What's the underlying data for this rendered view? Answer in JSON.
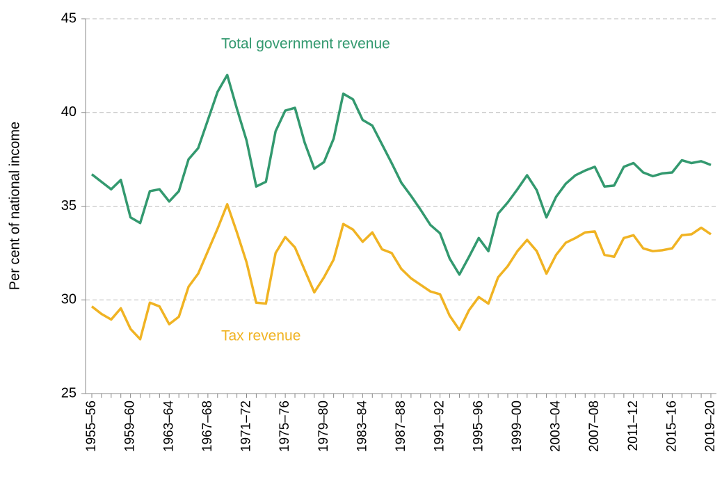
{
  "chart_data": {
    "type": "line",
    "y_label": "Per cent of national income",
    "categories": [
      "1955–56",
      null,
      null,
      null,
      "1959–60",
      null,
      null,
      null,
      "1963–64",
      null,
      null,
      null,
      "1967–68",
      null,
      null,
      null,
      "1971–72",
      null,
      null,
      null,
      "1975–76",
      null,
      null,
      null,
      "1979–80",
      null,
      null,
      null,
      "1983–84",
      null,
      null,
      null,
      "1987–88",
      null,
      null,
      null,
      "1991–92",
      null,
      null,
      null,
      "1995–96",
      null,
      null,
      null,
      "1999–00",
      null,
      null,
      null,
      "2003–04",
      null,
      null,
      null,
      "2007–08",
      null,
      null,
      null,
      "2011–12",
      null,
      null,
      null,
      "2015–16",
      null,
      null,
      null,
      "2019–20"
    ],
    "series": [
      {
        "name": "Total government revenue",
        "color": "#33996f",
        "values": [
          36.7,
          36.3,
          35.9,
          36.4,
          34.4,
          34.1,
          35.8,
          35.9,
          35.25,
          35.8,
          37.5,
          38.1,
          39.6,
          41.1,
          42.0,
          40.2,
          38.5,
          36.05,
          36.3,
          39.0,
          40.1,
          40.25,
          38.4,
          37.0,
          37.35,
          38.6,
          41.0,
          40.7,
          39.6,
          39.3,
          38.3,
          37.3,
          36.25,
          35.55,
          34.8,
          34.0,
          33.55,
          32.2,
          31.35,
          32.3,
          33.3,
          32.6,
          34.6,
          35.2,
          35.9,
          36.65,
          35.85,
          34.4,
          35.5,
          36.2,
          36.65,
          36.9,
          37.1,
          36.05,
          36.1,
          37.1,
          37.3,
          36.8,
          36.6,
          36.75,
          36.8,
          37.45,
          37.3,
          37.4,
          37.2
        ]
      },
      {
        "name": "Tax revenue",
        "color": "#f0b323",
        "values": [
          29.65,
          29.25,
          28.95,
          29.55,
          28.45,
          27.9,
          29.85,
          29.65,
          28.7,
          29.1,
          30.7,
          31.4,
          32.6,
          33.8,
          35.1,
          33.6,
          32.0,
          29.85,
          29.8,
          32.5,
          33.35,
          32.8,
          31.6,
          30.4,
          31.2,
          32.15,
          34.05,
          33.75,
          33.1,
          33.6,
          32.7,
          32.5,
          31.65,
          31.15,
          30.8,
          30.45,
          30.3,
          29.15,
          28.4,
          29.45,
          30.15,
          29.8,
          31.2,
          31.8,
          32.6,
          33.2,
          32.6,
          31.4,
          32.4,
          33.05,
          33.3,
          33.6,
          33.65,
          32.4,
          32.3,
          33.3,
          33.45,
          32.75,
          32.6,
          32.65,
          32.75,
          33.45,
          33.5,
          33.85,
          33.5
        ]
      }
    ],
    "ylim": [
      25,
      45
    ],
    "yticks": [
      25,
      30,
      35,
      40,
      45
    ],
    "grid": true
  }
}
